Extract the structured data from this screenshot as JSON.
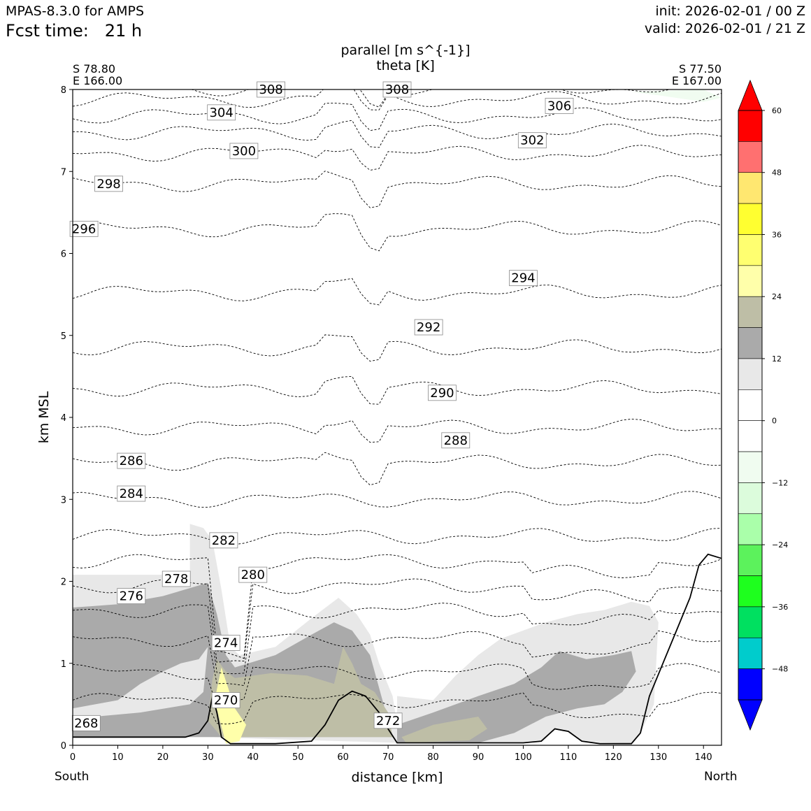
{
  "header": {
    "model": "MPAS-8.3.0 for AMPS",
    "fcst_label": "Fcst time:",
    "fcst_value": "21 h",
    "init": "init: 2026-02-01 / 00 Z",
    "valid": "valid: 2026-02-01 / 21 Z"
  },
  "endpoints": {
    "left_lat": "S 78.80",
    "left_lon": "E 166.00",
    "right_lat": "S 77.50",
    "right_lon": "E 167.00",
    "left_dir": "South",
    "right_dir": "North"
  },
  "chart_data": {
    "type": "contour",
    "title": "parallel [m s^{-1}]",
    "subtitle": "theta [K]",
    "xlabel": "distance [km]",
    "ylabel": "km MSL",
    "xlim": [
      0,
      144
    ],
    "ylim": [
      0,
      8
    ],
    "x_ticks": [
      "0",
      "10",
      "20",
      "30",
      "40",
      "50",
      "60",
      "70",
      "80",
      "90",
      "100",
      "110",
      "120",
      "130",
      "140"
    ],
    "y_ticks": [
      "0",
      "1",
      "2",
      "3",
      "4",
      "5",
      "6",
      "7",
      "8"
    ],
    "colorbar": {
      "ticks": [
        "60",
        "48",
        "36",
        "24",
        "12",
        "0",
        "−12",
        "−24",
        "−36",
        "−48"
      ],
      "bins": [
        {
          "from": 54,
          "to": 60,
          "color": "#ff0000"
        },
        {
          "from": 48,
          "to": 54,
          "color": "#ff7070"
        },
        {
          "from": 42,
          "to": 48,
          "color": "#ffe770"
        },
        {
          "from": 36,
          "to": 42,
          "color": "#ffff30"
        },
        {
          "from": 30,
          "to": 36,
          "color": "#ffff70"
        },
        {
          "from": 24,
          "to": 30,
          "color": "#ffffaa"
        },
        {
          "from": 18,
          "to": 24,
          "color": "#bebea6"
        },
        {
          "from": 12,
          "to": 18,
          "color": "#aaaaaa"
        },
        {
          "from": 6,
          "to": 12,
          "color": "#e8e8e8"
        },
        {
          "from": 0,
          "to": 6,
          "color": "#ffffff"
        },
        {
          "from": -6,
          "to": 0,
          "color": "#ffffff"
        },
        {
          "from": -12,
          "to": -6,
          "color": "#f0fcf0"
        },
        {
          "from": -18,
          "to": -12,
          "color": "#dcfcdc"
        },
        {
          "from": -24,
          "to": -18,
          "color": "#aaffaa"
        },
        {
          "from": -30,
          "to": -24,
          "color": "#5cf25c"
        },
        {
          "from": -36,
          "to": -30,
          "color": "#1eff1e"
        },
        {
          "from": -42,
          "to": -36,
          "color": "#00e060"
        },
        {
          "from": -48,
          "to": -42,
          "color": "#00cccc"
        },
        {
          "from": -54,
          "to": -48,
          "color": "#0000ff"
        }
      ],
      "over_color": "#ff0000",
      "under_color": "#0000ff"
    },
    "terrain_km": [
      [
        0,
        0.1
      ],
      [
        10,
        0.1
      ],
      [
        20,
        0.1
      ],
      [
        25,
        0.1
      ],
      [
        28,
        0.15
      ],
      [
        30,
        0.3
      ],
      [
        31,
        0.6
      ],
      [
        32,
        0.4
      ],
      [
        33,
        0.1
      ],
      [
        35,
        0.02
      ],
      [
        45,
        0.02
      ],
      [
        53,
        0.05
      ],
      [
        56,
        0.25
      ],
      [
        59,
        0.55
      ],
      [
        62,
        0.66
      ],
      [
        65,
        0.6
      ],
      [
        68,
        0.4
      ],
      [
        70,
        0.2
      ],
      [
        72,
        0.03
      ],
      [
        100,
        0.03
      ],
      [
        104,
        0.05
      ],
      [
        107,
        0.2
      ],
      [
        110,
        0.17
      ],
      [
        113,
        0.05
      ],
      [
        117,
        0.02
      ],
      [
        124,
        0.02
      ],
      [
        126,
        0.15
      ],
      [
        128,
        0.6
      ],
      [
        131,
        1.0
      ],
      [
        134,
        1.4
      ],
      [
        137,
        1.8
      ],
      [
        139,
        2.2
      ],
      [
        141,
        2.33
      ],
      [
        144,
        2.28
      ]
    ],
    "theta_labels": [
      {
        "text": "308",
        "x": 44,
        "y": 8.0
      },
      {
        "text": "308",
        "x": 72,
        "y": 8.0
      },
      {
        "text": "304",
        "x": 33,
        "y": 7.72
      },
      {
        "text": "306",
        "x": 108,
        "y": 7.8
      },
      {
        "text": "302",
        "x": 102,
        "y": 7.38
      },
      {
        "text": "300",
        "x": 38,
        "y": 7.25
      },
      {
        "text": "298",
        "x": 8,
        "y": 6.85
      },
      {
        "text": "296",
        "x": 2.5,
        "y": 6.3
      },
      {
        "text": "294",
        "x": 100,
        "y": 5.7
      },
      {
        "text": "292",
        "x": 79,
        "y": 5.1
      },
      {
        "text": "290",
        "x": 82,
        "y": 4.3
      },
      {
        "text": "288",
        "x": 85,
        "y": 3.72
      },
      {
        "text": "286",
        "x": 13,
        "y": 3.47
      },
      {
        "text": "284",
        "x": 13,
        "y": 3.07
      },
      {
        "text": "282",
        "x": 33.5,
        "y": 2.5
      },
      {
        "text": "280",
        "x": 40,
        "y": 2.08
      },
      {
        "text": "278",
        "x": 23,
        "y": 2.03
      },
      {
        "text": "276",
        "x": 13,
        "y": 1.82
      },
      {
        "text": "274",
        "x": 34,
        "y": 1.25
      },
      {
        "text": "270",
        "x": 34,
        "y": 0.55
      },
      {
        "text": "272",
        "x": 70,
        "y": 0.3
      },
      {
        "text": "268",
        "x": 3,
        "y": 0.27
      }
    ]
  }
}
